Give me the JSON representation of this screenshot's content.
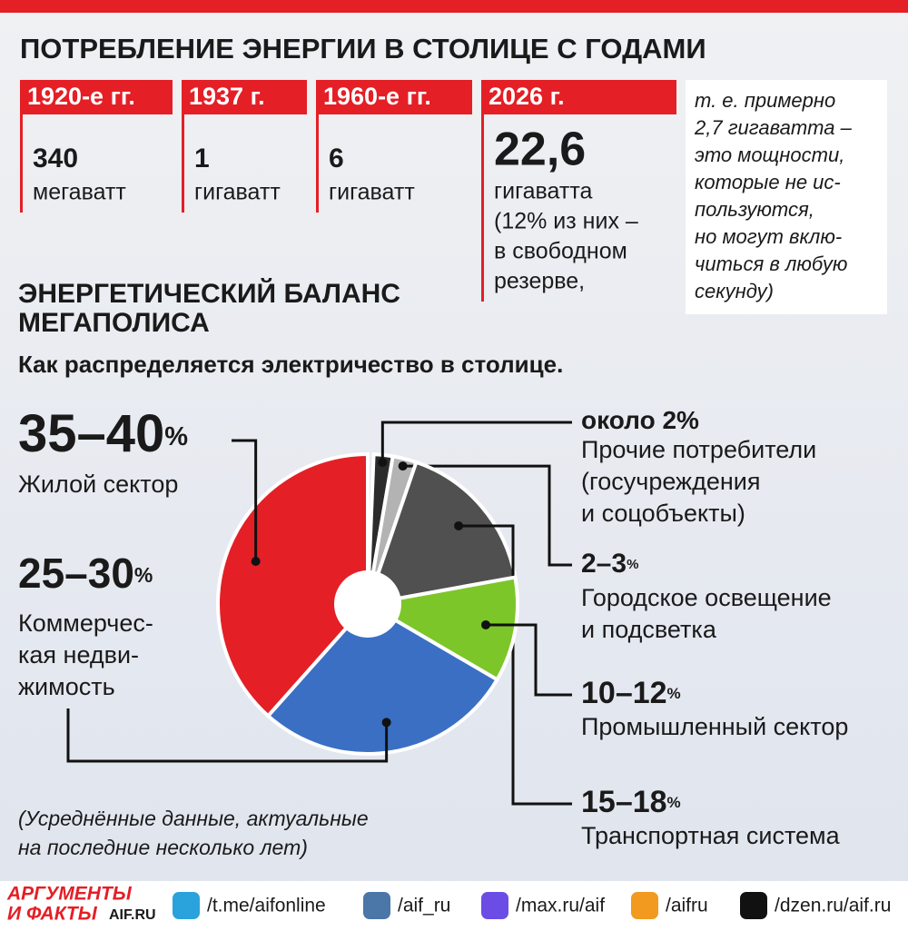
{
  "header": {
    "title": "ПОТРЕБЛЕНИЕ ЭНЕРГИИ В СТОЛИЦЕ С ГОДАМИ"
  },
  "timeline": [
    {
      "period": "1920-е гг.",
      "value": "340",
      "unit": [
        "мегаватт"
      ]
    },
    {
      "period": "1937 г.",
      "value": "1",
      "unit": [
        "гигаватт"
      ]
    },
    {
      "period": "1960-е гг.",
      "value": "6",
      "unit": [
        "гигаватт"
      ]
    },
    {
      "period": "2026 г.",
      "value": "22,6",
      "unit": [
        "гигаватта",
        "(12% из них –",
        "в свободном",
        "резерве,"
      ]
    }
  ],
  "side_note": [
    "т. е. примерно",
    "2,7 гигаватта –",
    "это мощности,",
    "которые не ис-",
    "пользуются,",
    "но могут вклю-",
    "читься в любую",
    "секунду)"
  ],
  "balance": {
    "title": [
      "ЭНЕРГЕТИЧЕСКИЙ БАЛАНС",
      "МЕГАПОЛИСА"
    ],
    "subtitle": "Как распределяется электричество в столице.",
    "slices": [
      {
        "label": "около 2",
        "unit": "%",
        "low": 2,
        "high": 2,
        "name": [
          "Прочие потребители",
          "(госучреждения",
          "и соцобъекты)"
        ],
        "color": "#2b2b2b"
      },
      {
        "label": "2–3",
        "unit": "%",
        "low": 2,
        "high": 3,
        "name": [
          "Городское освещение",
          "и подсветка"
        ],
        "color": "#b3b3b3"
      },
      {
        "label": "15–18",
        "unit": "%",
        "low": 15,
        "high": 18,
        "name": [
          "Транспортная система"
        ],
        "color": "#505050"
      },
      {
        "label": "10–12",
        "unit": "%",
        "low": 10,
        "high": 12,
        "name": [
          "Промышленный сектор"
        ],
        "color": "#7cc62a"
      },
      {
        "label": "25–30",
        "unit": "%",
        "low": 25,
        "high": 30,
        "name": [
          "Коммерчес-",
          "кая недви-",
          "жимость"
        ],
        "color": "#3a6fc4"
      },
      {
        "label": "35–40",
        "unit": "%",
        "low": 35,
        "high": 40,
        "name": [
          "Жилой сектор"
        ],
        "color": "#e41f26"
      }
    ],
    "footnote": [
      "(Усреднённые данные, актуальные",
      "на последние несколько лет)"
    ]
  },
  "footer": {
    "logo": [
      "АРГУМЕНТЫ",
      "И ФАКТЫ"
    ],
    "site": "AIF.RU",
    "links": [
      "/t.me/aifonline",
      "/aif_ru",
      "/max.ru/aif",
      "/aifru",
      "/dzen.ru/aif.ru"
    ]
  }
}
